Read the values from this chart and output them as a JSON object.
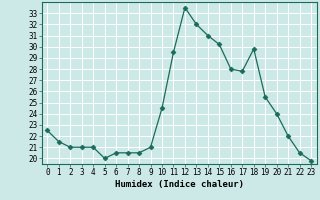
{
  "x": [
    0,
    1,
    2,
    3,
    4,
    5,
    6,
    7,
    8,
    9,
    10,
    11,
    12,
    13,
    14,
    15,
    16,
    17,
    18,
    19,
    20,
    21,
    22,
    23
  ],
  "y": [
    22.5,
    21.5,
    21.0,
    21.0,
    21.0,
    20.0,
    20.5,
    20.5,
    20.5,
    21.0,
    24.5,
    29.5,
    33.5,
    32.0,
    31.0,
    30.2,
    28.0,
    27.8,
    29.8,
    25.5,
    24.0,
    22.0,
    20.5,
    19.8
  ],
  "xlabel": "Humidex (Indice chaleur)",
  "xlim": [
    -0.5,
    23.5
  ],
  "ylim": [
    19.5,
    34.0
  ],
  "yticks": [
    20,
    21,
    22,
    23,
    24,
    25,
    26,
    27,
    28,
    29,
    30,
    31,
    32,
    33
  ],
  "xticks": [
    0,
    1,
    2,
    3,
    4,
    5,
    6,
    7,
    8,
    9,
    10,
    11,
    12,
    13,
    14,
    15,
    16,
    17,
    18,
    19,
    20,
    21,
    22,
    23
  ],
  "line_color": "#1a6b5a",
  "marker": "D",
  "marker_size": 2.5,
  "bg_color": "#cce9e7",
  "grid_color": "#ffffff",
  "label_fontsize": 6.5,
  "tick_fontsize": 5.5
}
